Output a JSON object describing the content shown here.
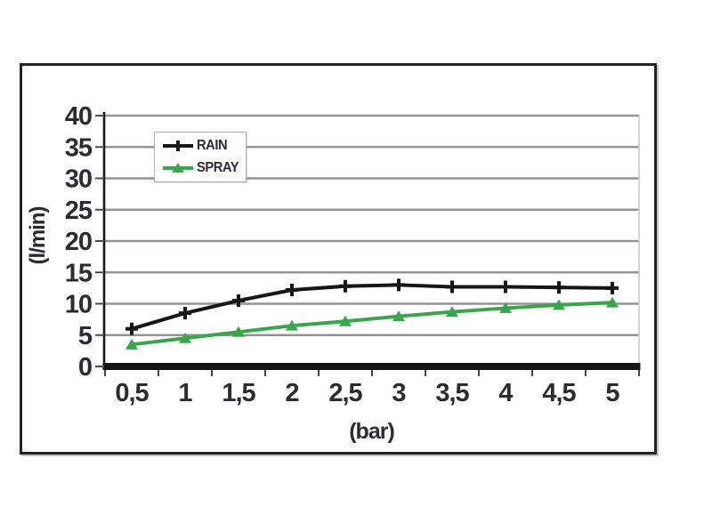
{
  "chart_data": {
    "type": "line",
    "title": "",
    "xlabel": "(bar)",
    "ylabel": "(l/min)",
    "categories": [
      "0,5",
      "1",
      "1,5",
      "2",
      "2,5",
      "3",
      "3,5",
      "4",
      "4,5",
      "5"
    ],
    "x_values": [
      0.5,
      1,
      1.5,
      2,
      2.5,
      3,
      3.5,
      4,
      4.5,
      5
    ],
    "series": [
      {
        "name": "RAIN",
        "color": "#161616",
        "marker": "plus",
        "values": [
          6,
          8.5,
          10.5,
          12.2,
          12.8,
          13,
          12.7,
          12.7,
          12.6,
          12.5
        ]
      },
      {
        "name": "SPRAY",
        "color": "#3aa54b",
        "marker": "triangle",
        "values": [
          3.5,
          4.5,
          5.5,
          6.5,
          7.2,
          8,
          8.7,
          9.3,
          9.8,
          10.2
        ]
      }
    ],
    "ylim": [
      0,
      40
    ],
    "yticks": [
      0,
      5,
      10,
      15,
      20,
      25,
      30,
      35,
      40
    ],
    "grid": "horizontal",
    "legend_position": "top-left-inside"
  },
  "style": {
    "background": "#ffffff",
    "figure_border_color": "#222225",
    "grid_color": "#949494",
    "axis_color": "#161616",
    "tick_color": "#4a4a4a",
    "text_color": "#2b2b33",
    "plot_right_border_color": "#c9c9c9",
    "legend_border_color": "#b3b3b3"
  }
}
